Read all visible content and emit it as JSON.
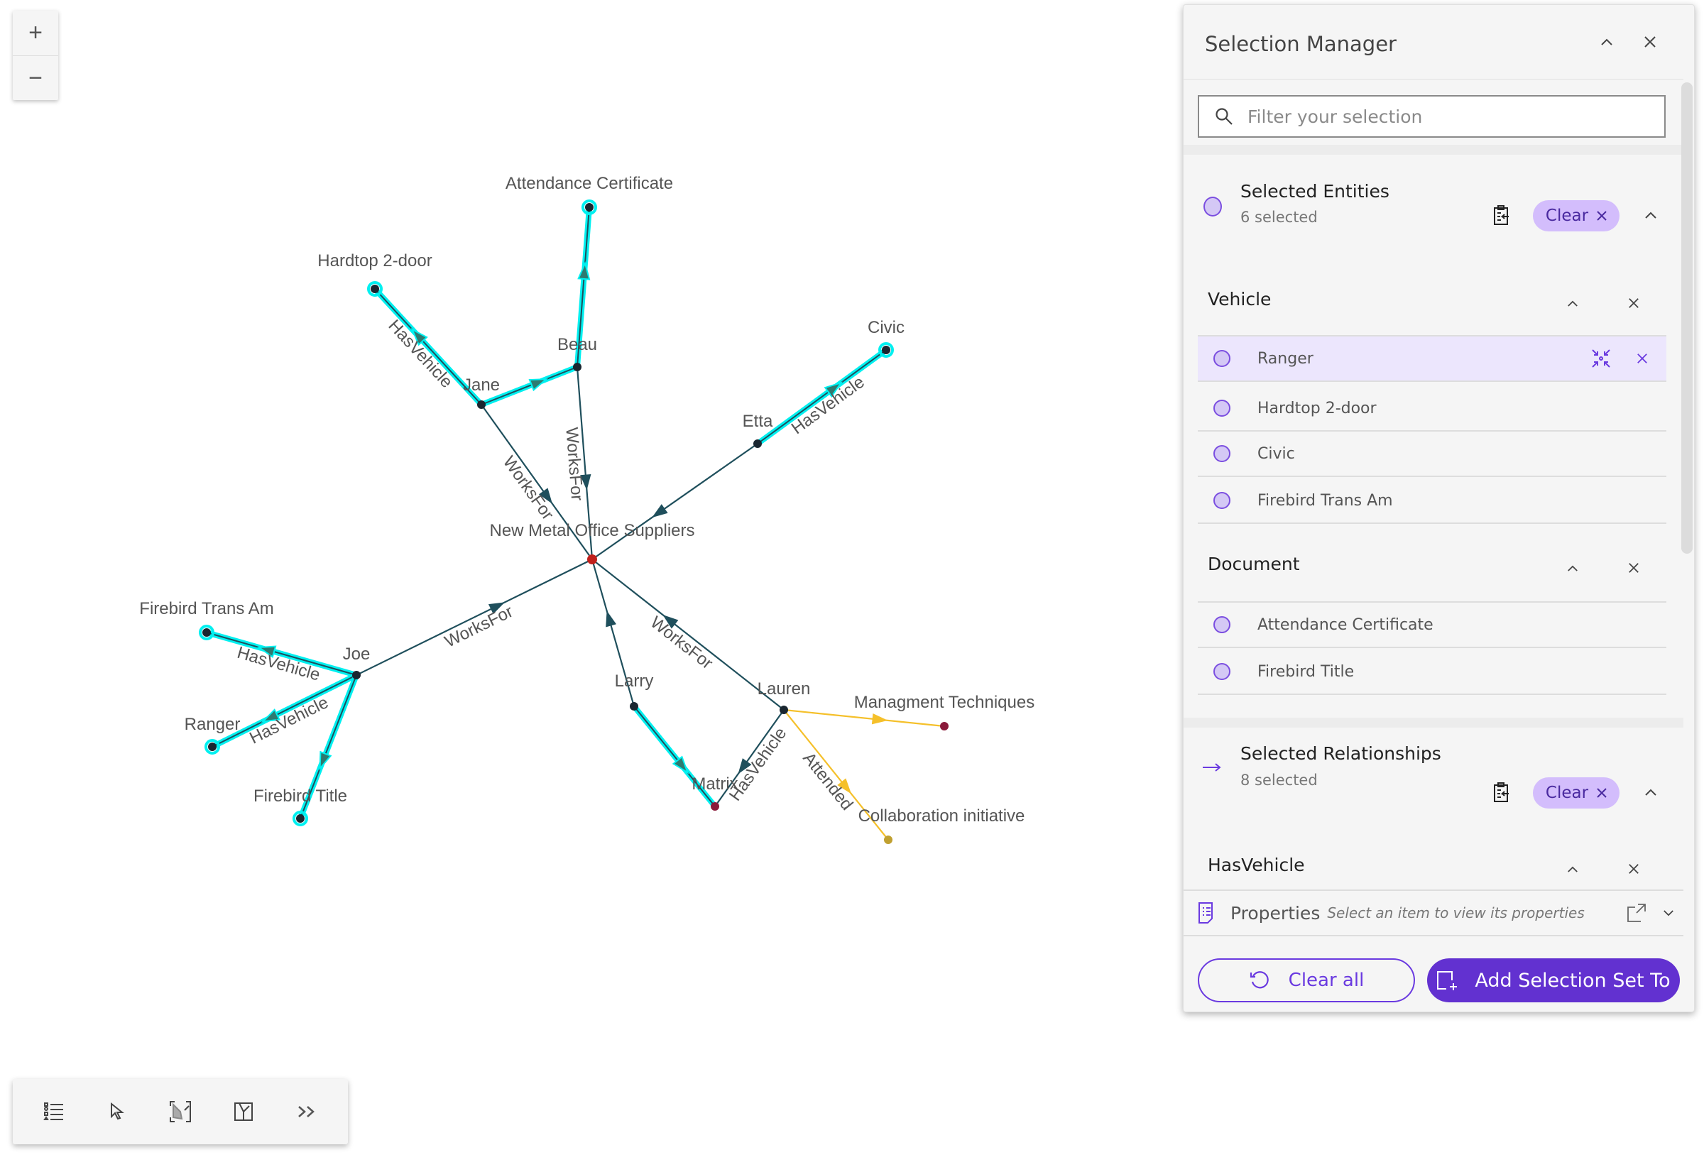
{
  "zoom_controls": {
    "zoom_in": "+",
    "zoom_out": "−"
  },
  "graph": {
    "nodes": [
      {
        "id": "nmos",
        "label": "New Metal Office Suppliers",
        "type": "organization",
        "color": "#c0201c"
      },
      {
        "id": "beau",
        "label": "Beau",
        "type": "person",
        "color": "#1a2630"
      },
      {
        "id": "jane",
        "label": "Jane",
        "type": "person",
        "color": "#1a2630"
      },
      {
        "id": "etta",
        "label": "Etta",
        "type": "person",
        "color": "#1a2630"
      },
      {
        "id": "joe",
        "label": "Joe",
        "type": "person",
        "color": "#1a2630"
      },
      {
        "id": "larry",
        "label": "Larry",
        "type": "person",
        "color": "#1a2630"
      },
      {
        "id": "lauren",
        "label": "Lauren",
        "type": "person",
        "color": "#1a2630"
      },
      {
        "id": "hardtop",
        "label": "Hardtop 2-door",
        "type": "vehicle",
        "color": "#1a2630",
        "selected": true
      },
      {
        "id": "civic",
        "label": "Civic",
        "type": "vehicle",
        "color": "#1a2630",
        "selected": true
      },
      {
        "id": "fta",
        "label": "Firebird Trans Am",
        "type": "vehicle",
        "color": "#1a2630",
        "selected": true
      },
      {
        "id": "ranger",
        "label": "Ranger",
        "type": "vehicle",
        "color": "#1a2630",
        "selected": true
      },
      {
        "id": "matrix",
        "label": "Matrix",
        "type": "vehicle",
        "color": "#8a1a3a"
      },
      {
        "id": "attcert",
        "label": "Attendance Certificate",
        "type": "document",
        "color": "#1a2630",
        "selected": true
      },
      {
        "id": "fbtitle",
        "label": "Firebird Title",
        "type": "document",
        "color": "#1a2630",
        "selected": true
      },
      {
        "id": "mgmt",
        "label": "Managment Techniques",
        "type": "event",
        "color": "#8a1a3a"
      },
      {
        "id": "collab",
        "label": "Collaboration initiative",
        "type": "event",
        "color": "#c0a030"
      }
    ],
    "edges": [
      {
        "from": "jane",
        "to": "nmos",
        "label": "WorksFor",
        "color": "#1f4f5c"
      },
      {
        "from": "beau",
        "to": "nmos",
        "label": "WorksFor",
        "color": "#1f4f5c"
      },
      {
        "from": "etta",
        "to": "nmos",
        "label": "",
        "color": "#1f4f5c"
      },
      {
        "from": "joe",
        "to": "nmos",
        "label": "WorksFor",
        "color": "#1f4f5c"
      },
      {
        "from": "larry",
        "to": "nmos",
        "label": "",
        "color": "#1f4f5c"
      },
      {
        "from": "lauren",
        "to": "nmos",
        "label": "WorksFor",
        "color": "#1f4f5c"
      },
      {
        "from": "jane",
        "to": "hardtop",
        "label": "HasVehicle",
        "color": "#1f4f5c",
        "selected": true
      },
      {
        "from": "jane",
        "to": "beau",
        "label": "",
        "color": "#1f4f5c",
        "selected": true
      },
      {
        "from": "beau",
        "to": "attcert",
        "label": "",
        "color": "#1f4f5c",
        "selected": true
      },
      {
        "from": "etta",
        "to": "civic",
        "label": "HasVehicle",
        "color": "#1f4f5c",
        "selected": true
      },
      {
        "from": "joe",
        "to": "fta",
        "label": "HasVehicle",
        "color": "#1f4f5c",
        "selected": true
      },
      {
        "from": "joe",
        "to": "ranger",
        "label": "HasVehicle",
        "color": "#1f4f5c",
        "selected": true
      },
      {
        "from": "joe",
        "to": "fbtitle",
        "label": "",
        "color": "#1f4f5c",
        "selected": true
      },
      {
        "from": "larry",
        "to": "matrix",
        "label": "",
        "color": "#1f4f5c",
        "selected": true
      },
      {
        "from": "lauren",
        "to": "matrix",
        "label": "HasVehicle",
        "color": "#1f4f5c"
      },
      {
        "from": "lauren",
        "to": "mgmt",
        "label": "",
        "color": "#f5c02a"
      },
      {
        "from": "lauren",
        "to": "collab",
        "label": "Attended",
        "color": "#f5c02a"
      }
    ],
    "selection_color": "#00f0f0"
  },
  "toolbar": {
    "icons": [
      "legend-list-icon",
      "select-pointer-icon",
      "lasso-select-icon",
      "layout-icon",
      "expand-more-icon"
    ]
  },
  "panel": {
    "title": "Selection Manager",
    "search_placeholder": "Filter your selection",
    "entities": {
      "title": "Selected Entities",
      "count": "6 selected",
      "clear": "Clear",
      "groups": [
        {
          "name": "Vehicle",
          "items": [
            "Ranger",
            "Hardtop 2-door",
            "Civic",
            "Firebird Trans Am"
          ]
        },
        {
          "name": "Document",
          "items": [
            "Attendance Certificate",
            "Firebird Title"
          ]
        }
      ]
    },
    "relationships": {
      "title": "Selected Relationships",
      "count": "8 selected",
      "clear": "Clear",
      "groups": [
        {
          "name": "HasVehicle"
        }
      ]
    },
    "properties": {
      "title": "Properties",
      "hint": "Select an item to view its properties"
    },
    "buttons": {
      "clear_all": "Clear all",
      "add_selection": "Add Selection Set To"
    },
    "accent": "#6231d0",
    "highlight_row": "Ranger"
  }
}
